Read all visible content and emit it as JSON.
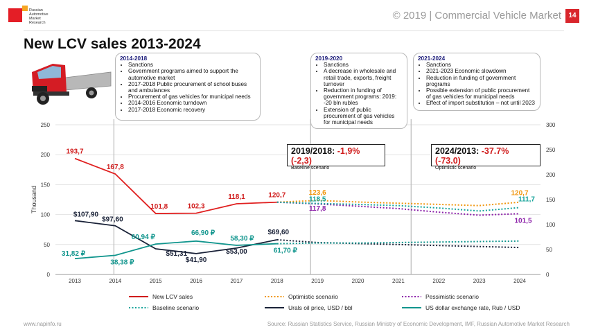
{
  "header": {
    "logo_text": "Russian Automotive Market Research",
    "right_text": "© 2019  |  Commercial Vehicle Market",
    "page_number": "14"
  },
  "title": "New LCV sales 2013-2024",
  "boxes": [
    {
      "title": "2014-2018",
      "items": [
        "Sanctions",
        "Government programs aimed to support the automotive market",
        "2017-2018 Public procurement of school buses and ambulances",
        "Procurement of gas vehicles for municipal needs",
        "2014-2016 Economic turndown",
        "2017-2018 Economic recovery"
      ]
    },
    {
      "title": "2019-2020",
      "items": [
        "Sanctions",
        "A decrease in wholesale and retail trade, exports, freight turnover",
        "Reduction in funding of government programs: 2019: -20 bln rubles",
        "Extension of public procurement of gas vehicles for municipal needs"
      ]
    },
    {
      "title": "2021-2024",
      "items": [
        "Sanctions",
        "2021-2023 Economic slowdown",
        "Reduction in funding of government programs",
        "Possible extension of public procurement of gas vehicles for municipal needs",
        "Effect of import substitution – not until 2023"
      ]
    }
  ],
  "callouts": [
    {
      "label": "2019/2018: ",
      "value": "-1,9% (-2,3)",
      "sub": "Baseline scenario"
    },
    {
      "label": "2024/2013: ",
      "value": "-37.7% (-73.0)",
      "sub": "Optimistic scenario"
    }
  ],
  "chart_data": {
    "type": "line",
    "x": [
      2013,
      2014,
      2015,
      2016,
      2017,
      2018,
      2019,
      2020,
      2021,
      2022,
      2023,
      2024
    ],
    "ylabel": "Thousand",
    "ylim": [
      0,
      250
    ],
    "yticks": [
      0,
      50,
      100,
      150,
      200,
      250
    ],
    "y2lim": [
      0,
      300
    ],
    "y2ticks": [
      0,
      50,
      100,
      150,
      200,
      250,
      300
    ],
    "colors": {
      "sales": "#e02020",
      "optimistic": "#f0960e",
      "pessimistic": "#8b1fa8",
      "baseline": "#16a39a",
      "oil": "#1a2238",
      "usd": "#10958d"
    },
    "series": [
      {
        "key": "sales",
        "name": "New LCV sales",
        "axis": "left",
        "dash": false,
        "x": [
          2013,
          2014,
          2015,
          2016,
          2017,
          2018
        ],
        "values": [
          193.7,
          167.8,
          101.8,
          102.3,
          118.1,
          120.7
        ],
        "labels": [
          "193,7",
          "167,8",
          "101,8",
          "102,3",
          "118,1",
          "120,7"
        ]
      },
      {
        "key": "optimistic",
        "name": "Optimistic scenario",
        "axis": "left",
        "dash": true,
        "x": [
          2018,
          2019,
          2020,
          2021,
          2022,
          2023,
          2024
        ],
        "values": [
          120.7,
          123.6,
          121,
          119,
          117,
          115,
          120.7
        ],
        "labels": [
          "",
          "123,6",
          "",
          "",
          "",
          "",
          "120,7"
        ]
      },
      {
        "key": "pessimistic",
        "name": "Pessimistic scenario",
        "axis": "left",
        "dash": true,
        "x": [
          2018,
          2019,
          2020,
          2021,
          2022,
          2023,
          2024
        ],
        "values": [
          120.7,
          117.8,
          114,
          110,
          104,
          99,
          101.5
        ],
        "labels": [
          "",
          "117,8",
          "",
          "",
          "",
          "",
          "101,5"
        ]
      },
      {
        "key": "baseline",
        "name": "Baseline scenario",
        "axis": "left",
        "dash": true,
        "x": [
          2018,
          2019,
          2020,
          2021,
          2022,
          2023,
          2024
        ],
        "values": [
          120.7,
          118.5,
          117,
          115,
          111,
          106,
          111.7
        ],
        "labels": [
          "",
          "118,5",
          "",
          "",
          "",
          "",
          "111,7"
        ]
      },
      {
        "key": "oil",
        "name": "Urals oil price, USD / bbl",
        "axis": "right",
        "dash": false,
        "x": [
          2013,
          2014,
          2015,
          2016,
          2017,
          2018
        ],
        "values": [
          107.9,
          97.6,
          51.31,
          41.9,
          53.0,
          69.6
        ],
        "labels": [
          "$107,90",
          "$97,60",
          "$51,31",
          "$41,90",
          "$53,00",
          "$69,60"
        ]
      },
      {
        "key": "oil_fc",
        "name": "",
        "axis": "right",
        "dash": true,
        "x": [
          2018,
          2019,
          2020,
          2021,
          2022,
          2023,
          2024
        ],
        "values": [
          69.6,
          64,
          62,
          60,
          58,
          56,
          54
        ],
        "labels": [
          "",
          "",
          "",
          "",
          "",
          "",
          ""
        ]
      },
      {
        "key": "usd",
        "name": "US dollar exchange rate, Rub / USD",
        "axis": "right",
        "dash": false,
        "x": [
          2013,
          2014,
          2015,
          2016,
          2017,
          2018
        ],
        "values": [
          31.82,
          38.38,
          60.94,
          66.9,
          58.3,
          61.7
        ],
        "labels": [
          "31,82 ₽",
          "38,38 ₽",
          "60,94 ₽",
          "66,90 ₽",
          "58,30 ₽",
          "61,70 ₽"
        ]
      },
      {
        "key": "usd_fc",
        "name": "",
        "axis": "right",
        "dash": true,
        "x": [
          2018,
          2019,
          2020,
          2021,
          2022,
          2023,
          2024
        ],
        "values": [
          61.7,
          63,
          63,
          64,
          65,
          66,
          67
        ],
        "labels": [
          "",
          "",
          "",
          "",
          "",
          "",
          ""
        ]
      }
    ],
    "legend": [
      {
        "key": "sales",
        "name": "New LCV sales",
        "dash": false
      },
      {
        "key": "optimistic",
        "name": "Optimistic scenario",
        "dash": true
      },
      {
        "key": "pessimistic",
        "name": "Pessimistic scenario",
        "dash": true
      },
      {
        "key": "baseline",
        "name": "Baseline scenario",
        "dash": true
      },
      {
        "key": "oil",
        "name": "Urals oil price, USD / bbl",
        "dash": false
      },
      {
        "key": "usd",
        "name": "US dollar exchange rate, Rub / USD",
        "dash": false
      }
    ]
  },
  "footer": {
    "left": "www.napinfo.ru",
    "right": "Source: Russian Statistics Service, Russian Ministry of Economic Development, IMF, Russian Automotive Market Research"
  }
}
